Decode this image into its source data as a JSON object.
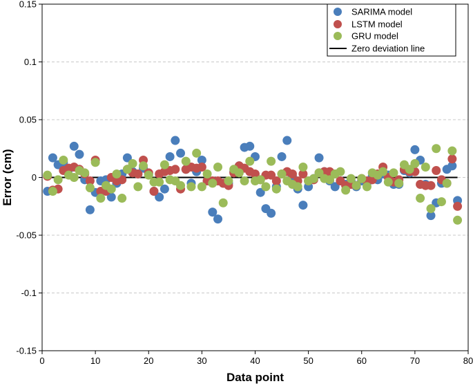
{
  "chart_data": {
    "type": "scatter",
    "title": "",
    "xlabel": "Data point",
    "ylabel": "Error (cm)",
    "xlim": [
      0,
      80
    ],
    "ylim": [
      -0.15,
      0.15
    ],
    "xticks": [
      0,
      10,
      20,
      30,
      40,
      50,
      60,
      70,
      80
    ],
    "xtick_labels": [
      "0",
      "10",
      "20",
      "30",
      "40",
      "50",
      "60",
      "70",
      "80"
    ],
    "yticks": [
      -0.15,
      -0.1,
      -0.05,
      0,
      0.05,
      0.1,
      0.15
    ],
    "ytick_labels": [
      "-0.15",
      "-0.1",
      "-0.05",
      "0",
      "0.05",
      "0.1",
      "0.15"
    ],
    "grid": "horizontal dashed",
    "legend_position": "top-right",
    "x": [
      1,
      2,
      3,
      4,
      5,
      6,
      7,
      8,
      9,
      10,
      11,
      12,
      13,
      14,
      15,
      16,
      17,
      18,
      19,
      20,
      21,
      22,
      23,
      24,
      25,
      26,
      27,
      28,
      29,
      30,
      31,
      32,
      33,
      34,
      35,
      36,
      37,
      38,
      39,
      40,
      41,
      42,
      43,
      44,
      45,
      46,
      47,
      48,
      49,
      50,
      51,
      52,
      53,
      54,
      55,
      56,
      57,
      58,
      59,
      60,
      61,
      62,
      63,
      64,
      65,
      66,
      67,
      68,
      69,
      70,
      71,
      72,
      73,
      74,
      75,
      76,
      77,
      78
    ],
    "series": [
      {
        "name": "SARIMA model",
        "color": "#4a7ebb",
        "values": [
          -0.012,
          0.017,
          0.011,
          0.013,
          0.007,
          0.027,
          0.02,
          -0.002,
          -0.028,
          -0.013,
          -0.003,
          -0.002,
          -0.017,
          -0.005,
          0.003,
          0.017,
          0.005,
          0.003,
          0.008,
          0.003,
          -0.012,
          -0.017,
          -0.01,
          0.018,
          0.032,
          0.021,
          0.007,
          -0.005,
          0.005,
          0.015,
          -0.003,
          -0.03,
          -0.036,
          -0.005,
          -0.005,
          0.005,
          0.01,
          0.026,
          0.027,
          0.018,
          -0.013,
          -0.027,
          -0.031,
          -0.008,
          0.018,
          0.032,
          0.001,
          -0.01,
          -0.024,
          -0.008,
          -0.001,
          0.017,
          0.005,
          -0.003,
          -0.008,
          -0.003,
          -0.006,
          -0.003,
          -0.008,
          -0.003,
          -0.005,
          0.001,
          -0.002,
          0.003,
          0.002,
          -0.006,
          -0.006,
          0.006,
          0.004,
          0.024,
          0.015,
          -0.006,
          -0.033,
          -0.022,
          -0.005,
          0.007,
          0.01,
          -0.02
        ]
      },
      {
        "name": "LSTM model",
        "color": "#c0504d",
        "values": [
          0.001,
          -0.011,
          -0.01,
          0.006,
          0.008,
          0.009,
          0.007,
          0.003,
          -0.003,
          0.015,
          -0.012,
          -0.012,
          0,
          -0.003,
          -0.002,
          0.007,
          0.004,
          0.003,
          0.015,
          0.004,
          -0.012,
          0.003,
          0.005,
          0.006,
          0.007,
          -0.01,
          0.007,
          0.009,
          0.008,
          0.009,
          -0.003,
          -0.003,
          -0.003,
          -0.005,
          -0.007,
          0.004,
          0.01,
          0.008,
          0.005,
          0.003,
          -0.002,
          0.002,
          0.002,
          -0.003,
          0.003,
          0.005,
          0.003,
          -0.003,
          0.003,
          -0.003,
          -0.002,
          0.004,
          0.005,
          0.005,
          0.003,
          -0.003,
          -0.007,
          -0.006,
          -0.007,
          -0.001,
          -0.003,
          -0.002,
          0.003,
          0.009,
          0,
          -0.004,
          -0.002,
          0.007,
          0.005,
          0.005,
          -0.006,
          -0.007,
          -0.007,
          0.006,
          -0.002,
          -0.005,
          0.016,
          -0.025
        ]
      },
      {
        "name": "GRU model",
        "color": "#9bbb59",
        "values": [
          0.002,
          -0.012,
          -0.002,
          0.015,
          0.002,
          0,
          0.006,
          0.004,
          -0.009,
          0.013,
          -0.018,
          -0.007,
          -0.01,
          0.003,
          -0.018,
          0.007,
          0.012,
          -0.008,
          0.01,
          0.002,
          -0.004,
          -0.004,
          0.011,
          -0.002,
          -0.003,
          -0.007,
          0.014,
          -0.008,
          0.021,
          -0.008,
          0.003,
          -0.005,
          0.009,
          -0.022,
          -0.003,
          0.007,
          0.004,
          -0.003,
          0.014,
          -0.003,
          -0.002,
          -0.008,
          0.014,
          -0.01,
          0.003,
          -0.003,
          -0.006,
          -0.008,
          0.009,
          -0.003,
          -0.001,
          0.004,
          -0.001,
          -0.002,
          0.003,
          0.005,
          -0.011,
          -0.001,
          -0.007,
          -0.001,
          -0.008,
          0.004,
          0.002,
          0.005,
          -0.004,
          0.004,
          -0.005,
          0.011,
          0.007,
          0.012,
          -0.018,
          0.009,
          -0.027,
          0.025,
          -0.021,
          -0.005,
          0.023,
          -0.037
        ]
      },
      {
        "name": "Zero deviation line",
        "type": "line",
        "color": "#000000",
        "x": [
          1,
          78
        ],
        "values": [
          0,
          0
        ]
      }
    ]
  }
}
